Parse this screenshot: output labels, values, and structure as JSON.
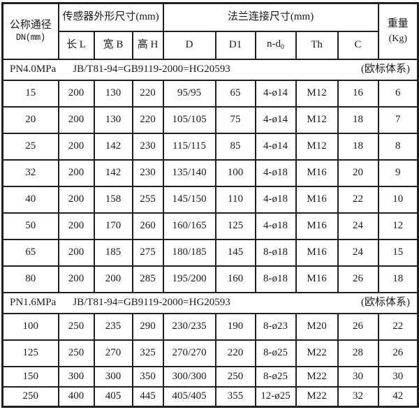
{
  "table": {
    "header": {
      "nominal_diameter": {
        "line1": "公称通径",
        "line2": "DN(mm)"
      },
      "sensor_group": "传感器外形尺寸(mm)",
      "sensor_cols": [
        "长 L",
        "宽 B",
        "高 H"
      ],
      "flange_group": "法兰连接尺寸(mm)",
      "flange_cols": [
        "D",
        "D1",
        "n-d",
        "Th",
        "C"
      ],
      "nd0_sub": "0",
      "weight": {
        "line1": "重量",
        "line2": "(Kg)"
      }
    },
    "sections": [
      {
        "label": "PN4.0MPa",
        "standard": "JB/T81-94=GB9119-2000=HG20593",
        "note": "(欧标体系)",
        "rows": [
          [
            "15",
            "200",
            "130",
            "220",
            "95/95",
            "65",
            "4-ø14",
            "M12",
            "16",
            "6"
          ],
          [
            "20",
            "200",
            "130",
            "220",
            "105/105",
            "75",
            "4-ø14",
            "M12",
            "18",
            "7"
          ],
          [
            "25",
            "200",
            "142",
            "230",
            "115/115",
            "85",
            "4-ø14",
            "M12",
            "18",
            "8"
          ],
          [
            "32",
            "200",
            "142",
            "230",
            "135/140",
            "100",
            "4-ø18",
            "M16",
            "20",
            "9"
          ],
          [
            "40",
            "200",
            "158",
            "255",
            "145/150",
            "110",
            "4-ø18",
            "M16",
            "22",
            "10"
          ],
          [
            "50",
            "200",
            "170",
            "260",
            "160/165",
            "125",
            "4-ø18",
            "M16",
            "24",
            "12"
          ],
          [
            "65",
            "200",
            "185",
            "275",
            "180/185",
            "145",
            "8-ø18",
            "M16",
            "24",
            "15"
          ],
          [
            "80",
            "200",
            "200",
            "285",
            "195/200",
            "160",
            "8-ø18",
            "M16",
            "26",
            "18"
          ]
        ]
      },
      {
        "label": "PN1.6MPa",
        "standard": "JB/T81-94=GB9119-2000=HG20593",
        "note": "(欧标体系)",
        "rows": [
          [
            "100",
            "250",
            "235",
            "290",
            "230/235",
            "190",
            "8-ø23",
            "M20",
            "26",
            "22"
          ],
          [
            "125",
            "250",
            "270",
            "325",
            "270/270",
            "220",
            "8-ø25",
            "M22",
            "28",
            "26"
          ],
          [
            "150",
            "300",
            "300",
            "350",
            "300/300",
            "250",
            "8-ø25",
            "M22",
            "30",
            "30"
          ],
          [
            "250",
            "400",
            "405",
            "445",
            "405/405",
            "355",
            "12-ø25",
            "M22",
            "32",
            "42"
          ]
        ]
      }
    ]
  }
}
